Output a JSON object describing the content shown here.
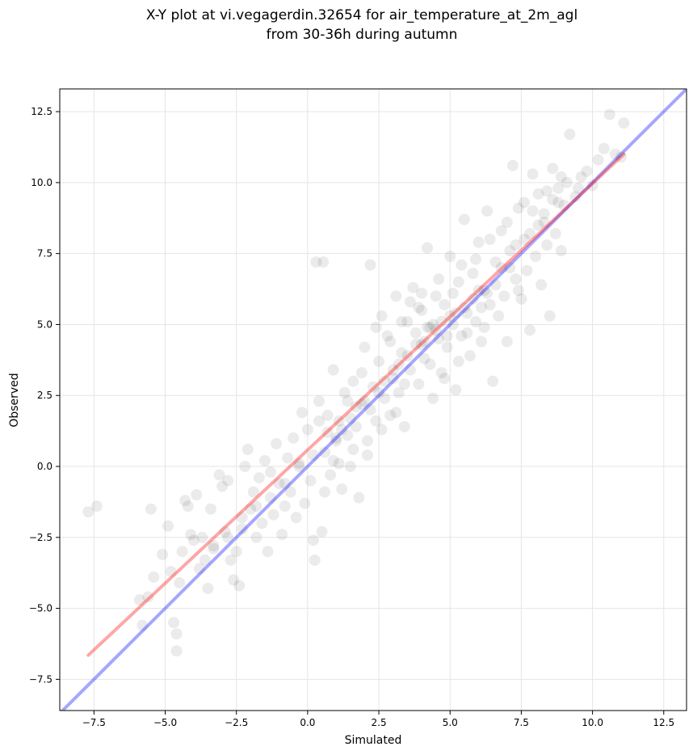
{
  "chart_data": {
    "type": "scatter",
    "title": "X-Y plot at vi.vegagerdin.32654 for air_temperature_at_2m_agl",
    "subtitle": "from 30-36h during autumn",
    "xlabel": "Simulated",
    "ylabel": "Observed",
    "xlim": [
      -8.7,
      13.3
    ],
    "ylim": [
      -8.6,
      13.3
    ],
    "grid": true,
    "x_ticks": [
      -7.5,
      -5.0,
      -2.5,
      0.0,
      2.5,
      5.0,
      7.5,
      10.0,
      12.5
    ],
    "y_ticks": [
      -7.5,
      -5.0,
      -2.5,
      0.0,
      2.5,
      5.0,
      7.5,
      10.0,
      12.5
    ],
    "x_tick_labels": [
      "−7.5",
      "−5.0",
      "−2.5",
      "0.0",
      "2.5",
      "5.0",
      "7.5",
      "10.0",
      "12.5"
    ],
    "y_tick_labels": [
      "−7.5",
      "−5.0",
      "−2.5",
      "0.0",
      "2.5",
      "5.0",
      "7.5",
      "10.0",
      "12.5"
    ],
    "point_color": "#000000",
    "point_opacity": 0.08,
    "reference_line": {
      "x": [
        -8.7,
        13.3
      ],
      "y": [
        -8.7,
        13.3
      ],
      "color": "#0000ff",
      "opacity": 0.35
    },
    "fit_line": {
      "x": [
        -7.7,
        11.1
      ],
      "y": [
        -6.65,
        11.0
      ],
      "color": "#ff0000",
      "opacity": 0.35
    },
    "points": [
      [
        -7.7,
        -1.6
      ],
      [
        -7.4,
        -1.4
      ],
      [
        -5.9,
        -4.7
      ],
      [
        -5.8,
        -5.6
      ],
      [
        -5.6,
        -4.6
      ],
      [
        -5.5,
        -1.5
      ],
      [
        -5.4,
        -3.9
      ],
      [
        -5.1,
        -3.1
      ],
      [
        -4.9,
        -2.1
      ],
      [
        -4.8,
        -3.7
      ],
      [
        -4.7,
        -5.5
      ],
      [
        -4.6,
        -5.9
      ],
      [
        -4.6,
        -6.5
      ],
      [
        -4.5,
        -4.1
      ],
      [
        -4.4,
        -3.0
      ],
      [
        -4.3,
        -1.2
      ],
      [
        -4.2,
        -1.4
      ],
      [
        -4.1,
        -2.4
      ],
      [
        -4.0,
        -2.6
      ],
      [
        -3.9,
        -1.0
      ],
      [
        -3.8,
        -3.6
      ],
      [
        -3.7,
        -2.5
      ],
      [
        -3.6,
        -3.3
      ],
      [
        -3.5,
        -4.3
      ],
      [
        -3.4,
        -1.5
      ],
      [
        -3.3,
        -2.8
      ],
      [
        -3.1,
        -0.3
      ],
      [
        -3.0,
        -0.7
      ],
      [
        -2.9,
        -2.3
      ],
      [
        -2.8,
        -0.5
      ],
      [
        -2.7,
        -3.3
      ],
      [
        -2.6,
        -4.0
      ],
      [
        -2.5,
        -3.0
      ],
      [
        -2.4,
        -4.2
      ],
      [
        -2.3,
        -1.8
      ],
      [
        -2.2,
        0.0
      ],
      [
        -2.1,
        0.6
      ],
      [
        -2.0,
        -1.5
      ],
      [
        -1.9,
        -0.9
      ],
      [
        -1.8,
        -2.5
      ],
      [
        -1.7,
        -0.4
      ],
      [
        -1.6,
        -2.0
      ],
      [
        -1.5,
        0.2
      ],
      [
        -1.4,
        -3.0
      ],
      [
        -1.3,
        -0.2
      ],
      [
        -1.2,
        -1.7
      ],
      [
        -1.1,
        0.8
      ],
      [
        -1.0,
        -0.6
      ],
      [
        -0.9,
        -2.4
      ],
      [
        -0.8,
        -1.4
      ],
      [
        -0.7,
        0.3
      ],
      [
        -0.6,
        -0.9
      ],
      [
        -0.5,
        1.0
      ],
      [
        -0.4,
        -1.8
      ],
      [
        -0.3,
        0.0
      ],
      [
        -0.2,
        1.9
      ],
      [
        -0.1,
        -1.3
      ],
      [
        0.0,
        1.3
      ],
      [
        0.1,
        -0.5
      ],
      [
        0.2,
        -2.6
      ],
      [
        0.25,
        -3.3
      ],
      [
        0.3,
        7.2
      ],
      [
        0.4,
        2.3
      ],
      [
        0.5,
        -2.3
      ],
      [
        0.55,
        7.2
      ],
      [
        0.6,
        0.5
      ],
      [
        0.7,
        1.8
      ],
      [
        0.8,
        -0.3
      ],
      [
        0.9,
        3.4
      ],
      [
        1.0,
        0.9
      ],
      [
        1.1,
        1.6
      ],
      [
        1.2,
        -0.8
      ],
      [
        1.3,
        2.6
      ],
      [
        1.4,
        1.1
      ],
      [
        1.5,
        0.0
      ],
      [
        1.6,
        3.0
      ],
      [
        1.7,
        1.4
      ],
      [
        1.8,
        -1.1
      ],
      [
        1.9,
        2.2
      ],
      [
        2.0,
        4.2
      ],
      [
        2.1,
        0.4
      ],
      [
        2.2,
        7.1
      ],
      [
        2.3,
        2.8
      ],
      [
        2.4,
        1.6
      ],
      [
        2.5,
        3.7
      ],
      [
        2.6,
        5.3
      ],
      [
        2.7,
        2.4
      ],
      [
        2.8,
        4.6
      ],
      [
        2.9,
        1.8
      ],
      [
        3.0,
        3.1
      ],
      [
        3.1,
        6.0
      ],
      [
        3.2,
        2.6
      ],
      [
        3.3,
        4.0
      ],
      [
        3.4,
        1.4
      ],
      [
        3.5,
        5.1
      ],
      [
        3.6,
        3.4
      ],
      [
        3.7,
        6.3
      ],
      [
        3.8,
        4.3
      ],
      [
        3.9,
        2.9
      ],
      [
        4.0,
        5.5
      ],
      [
        4.1,
        3.8
      ],
      [
        4.2,
        7.7
      ],
      [
        4.3,
        4.9
      ],
      [
        4.4,
        2.4
      ],
      [
        4.5,
        6.0
      ],
      [
        4.6,
        4.5
      ],
      [
        4.7,
        3.3
      ],
      [
        4.8,
        5.7
      ],
      [
        4.9,
        4.2
      ],
      [
        5.0,
        7.4
      ],
      [
        5.1,
        5.0
      ],
      [
        5.2,
        2.7
      ],
      [
        5.3,
        6.5
      ],
      [
        5.4,
        4.6
      ],
      [
        5.5,
        8.7
      ],
      [
        5.6,
        5.4
      ],
      [
        5.7,
        3.9
      ],
      [
        5.8,
        6.8
      ],
      [
        5.9,
        5.1
      ],
      [
        6.0,
        7.9
      ],
      [
        6.1,
        4.4
      ],
      [
        6.2,
        6.2
      ],
      [
        6.3,
        9.0
      ],
      [
        6.4,
        5.7
      ],
      [
        6.5,
        3.0
      ],
      [
        6.6,
        7.2
      ],
      [
        6.7,
        5.3
      ],
      [
        6.8,
        8.3
      ],
      [
        6.9,
        6.0
      ],
      [
        7.0,
        4.4
      ],
      [
        7.1,
        7.6
      ],
      [
        7.2,
        10.6
      ],
      [
        7.3,
        6.6
      ],
      [
        7.4,
        9.1
      ],
      [
        7.5,
        5.9
      ],
      [
        7.6,
        8.0
      ],
      [
        7.7,
        6.9
      ],
      [
        7.8,
        4.8
      ],
      [
        7.9,
        10.3
      ],
      [
        8.0,
        7.4
      ],
      [
        8.1,
        9.6
      ],
      [
        8.2,
        6.4
      ],
      [
        8.3,
        8.6
      ],
      [
        8.4,
        7.8
      ],
      [
        8.5,
        5.3
      ],
      [
        8.6,
        10.5
      ],
      [
        8.7,
        8.2
      ],
      [
        8.8,
        9.8
      ],
      [
        8.9,
        7.6
      ],
      [
        9.0,
        9.2
      ],
      [
        9.2,
        11.7
      ],
      [
        9.4,
        9.5
      ],
      [
        9.6,
        10.2
      ],
      [
        9.8,
        10.4
      ],
      [
        10.0,
        9.9
      ],
      [
        10.2,
        10.8
      ],
      [
        10.4,
        11.2
      ],
      [
        10.6,
        12.4
      ],
      [
        10.8,
        11.0
      ],
      [
        11.1,
        12.1
      ],
      [
        11.0,
        10.9
      ],
      [
        1.2,
        1.3
      ],
      [
        1.0,
        1.0
      ],
      [
        1.5,
        1.7
      ],
      [
        2.0,
        2.3
      ],
      [
        2.5,
        2.6
      ],
      [
        3.0,
        3.4
      ],
      [
        3.5,
        3.9
      ],
      [
        4.0,
        4.3
      ],
      [
        4.5,
        4.8
      ],
      [
        5.0,
        5.3
      ],
      [
        5.5,
        5.6
      ],
      [
        6.0,
        6.2
      ],
      [
        4.2,
        4.9
      ],
      [
        4.7,
        5.1
      ],
      [
        4.4,
        5.0
      ],
      [
        4.9,
        4.6
      ],
      [
        5.2,
        5.4
      ],
      [
        3.8,
        4.7
      ],
      [
        4.1,
        4.4
      ],
      [
        5.8,
        5.9
      ],
      [
        6.3,
        6.1
      ],
      [
        6.8,
        7.0
      ],
      [
        7.3,
        7.8
      ],
      [
        7.8,
        8.2
      ],
      [
        8.3,
        8.9
      ],
      [
        8.8,
        9.3
      ],
      [
        2.2,
        2.0
      ],
      [
        2.7,
        3.0
      ],
      [
        3.2,
        3.6
      ],
      [
        1.7,
        2.1
      ],
      [
        0.7,
        1.2
      ],
      [
        0.2,
        0.4
      ],
      [
        -0.3,
        0.1
      ],
      [
        -0.8,
        -0.6
      ],
      [
        -1.3,
        -1.1
      ],
      [
        -1.8,
        -1.4
      ],
      [
        -2.3,
        -2.2
      ],
      [
        -2.8,
        -2.5
      ],
      [
        -3.3,
        -2.9
      ],
      [
        3.9,
        5.6
      ],
      [
        4.3,
        3.6
      ],
      [
        5.6,
        4.7
      ],
      [
        6.1,
        5.6
      ],
      [
        6.6,
        6.4
      ],
      [
        7.1,
        7.0
      ],
      [
        2.9,
        4.4
      ],
      [
        3.4,
        2.9
      ],
      [
        5.3,
        3.7
      ],
      [
        4.6,
        6.6
      ],
      [
        3.6,
        5.8
      ],
      [
        2.4,
        4.9
      ],
      [
        1.9,
        3.3
      ],
      [
        1.4,
        2.3
      ],
      [
        0.9,
        0.2
      ],
      [
        0.4,
        1.6
      ],
      [
        6.4,
        8.0
      ],
      [
        7.0,
        8.6
      ],
      [
        7.6,
        9.3
      ],
      [
        8.1,
        8.5
      ],
      [
        5.9,
        7.3
      ],
      [
        6.2,
        4.9
      ],
      [
        7.4,
        6.2
      ],
      [
        8.6,
        9.4
      ],
      [
        9.1,
        10.0
      ],
      [
        9.5,
        9.8
      ],
      [
        8.9,
        10.2
      ],
      [
        8.4,
        9.7
      ],
      [
        7.9,
        9.0
      ],
      [
        3.1,
        1.9
      ],
      [
        2.6,
        1.3
      ],
      [
        2.1,
        0.9
      ],
      [
        1.6,
        0.6
      ],
      [
        1.1,
        0.1
      ],
      [
        0.6,
        -0.9
      ],
      [
        4.8,
        3.1
      ],
      [
        5.1,
        6.1
      ],
      [
        5.4,
        7.1
      ],
      [
        4.0,
        6.1
      ],
      [
        3.3,
        5.1
      ]
    ]
  }
}
